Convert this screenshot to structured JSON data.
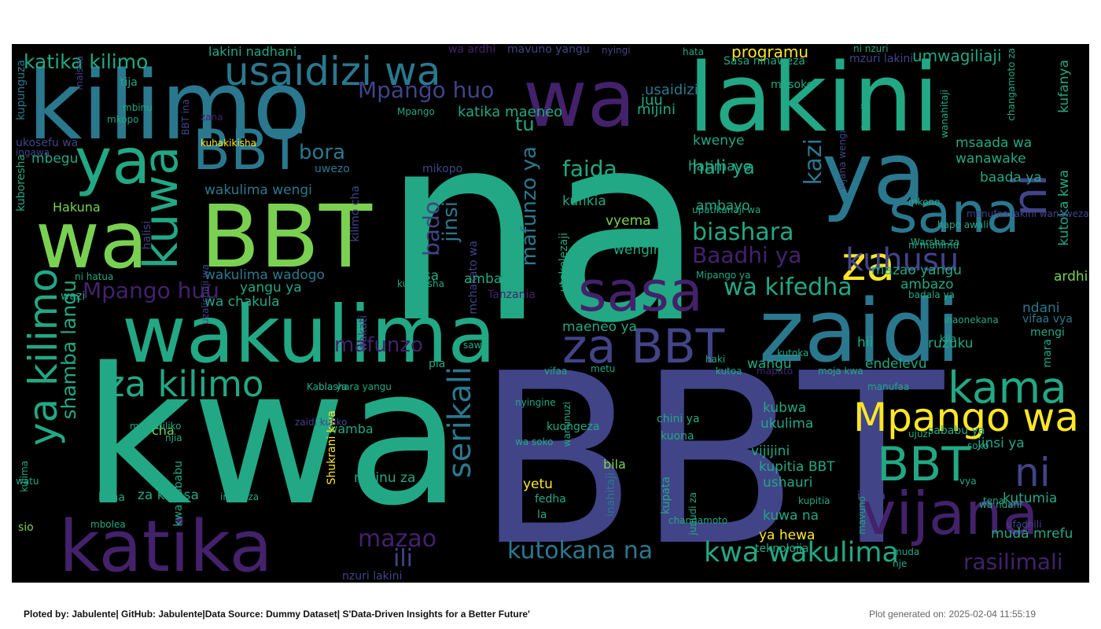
{
  "footer": {
    "credit": "Ploted by: Jabulente| GitHub: Jabulente|Data Source: Dummy Dataset| S'Data-Driven Insights for a Better Future'",
    "generated": "Plot generated on: 2025-02-04 11:55:19"
  },
  "palette": {
    "purple": "#44216b",
    "indigo": "#414487",
    "blue": "#2a788e",
    "teal": "#22a884",
    "green": "#7ad151",
    "yellow": "#fde725",
    "background": "#000000"
  },
  "words": [
    {
      "t": "na",
      "c": "teal"
    },
    {
      "t": "BBT",
      "c": "indigo"
    },
    {
      "t": "kwa",
      "c": "teal"
    },
    {
      "t": "lakini",
      "c": "teal"
    },
    {
      "t": "wakulima",
      "c": "teal"
    },
    {
      "t": "zaidi",
      "c": "blue"
    },
    {
      "t": "kilimo",
      "c": "blue"
    },
    {
      "t": "BBT",
      "c": "green"
    },
    {
      "t": "katika",
      "c": "purple"
    },
    {
      "t": "wa",
      "c": "green"
    },
    {
      "t": "ya",
      "c": "teal"
    },
    {
      "t": "wa",
      "c": "purple"
    },
    {
      "t": "ya",
      "c": "blue"
    },
    {
      "t": "BBT",
      "c": "blue"
    },
    {
      "t": "kuwa",
      "c": "teal"
    },
    {
      "t": "sasa",
      "c": "purple"
    },
    {
      "t": "vijana",
      "c": "purple"
    },
    {
      "t": "sana",
      "c": "blue"
    },
    {
      "t": "ni",
      "c": "indigo"
    },
    {
      "t": "ya kilimo",
      "c": "teal"
    },
    {
      "t": "za kilimo",
      "c": "teal"
    },
    {
      "t": "za",
      "c": "yellow"
    },
    {
      "t": "za BBT",
      "c": "indigo"
    },
    {
      "t": "kama",
      "c": "teal"
    },
    {
      "t": "Mpango wa",
      "c": "yellow"
    },
    {
      "t": "BBT",
      "c": "teal"
    },
    {
      "t": "ni",
      "c": "indigo"
    },
    {
      "t": "usaidizi wa",
      "c": "blue"
    },
    {
      "t": "serikali",
      "c": "blue"
    },
    {
      "t": "katika kilimo",
      "c": "teal"
    },
    {
      "t": "shamba langu",
      "c": "teal"
    },
    {
      "t": "Mpango huu",
      "c": "purple"
    },
    {
      "t": "kwa wakulima",
      "c": "teal"
    },
    {
      "t": "kutokana na",
      "c": "blue"
    },
    {
      "t": "mazao",
      "c": "purple"
    },
    {
      "t": "ili",
      "c": "indigo"
    },
    {
      "t": "biashara",
      "c": "teal"
    },
    {
      "t": "wa kifedha",
      "c": "teal"
    },
    {
      "t": "Mpango huo",
      "c": "indigo"
    },
    {
      "t": "mafunzo",
      "c": "purple"
    },
    {
      "t": "faida",
      "c": "teal"
    },
    {
      "t": "kuhusu",
      "c": "indigo"
    },
    {
      "t": "Baadhi ya",
      "c": "purple"
    },
    {
      "t": "rasilimali",
      "c": "purple"
    },
    {
      "t": "mafunzo ya",
      "c": "blue"
    },
    {
      "t": "jinsi",
      "c": "blue"
    },
    {
      "t": "bado",
      "c": "indigo"
    },
    {
      "t": "bora",
      "c": "blue"
    },
    {
      "t": "tu",
      "c": "teal"
    },
    {
      "t": "hali ya",
      "c": "teal"
    },
    {
      "t": "kazi",
      "c": "blue"
    },
    {
      "t": "programu",
      "c": "yellow"
    },
    {
      "t": "umwagiliaji",
      "c": "teal"
    },
    {
      "t": "juu",
      "c": "teal"
    },
    {
      "t": "usaidizi",
      "c": "blue"
    },
    {
      "t": "mijini",
      "c": "teal"
    },
    {
      "t": "katika maeneo",
      "c": "teal"
    },
    {
      "t": "kwenye",
      "c": "teal"
    },
    {
      "t": "msaada wa",
      "c": "teal"
    },
    {
      "t": "wanawake",
      "c": "teal"
    },
    {
      "t": "baada ya",
      "c": "teal"
    },
    {
      "t": "kutoka kwa",
      "c": "teal"
    },
    {
      "t": "kufanya",
      "c": "teal"
    },
    {
      "t": "wakulima wengi",
      "c": "blue"
    },
    {
      "t": "wakulima wadogo",
      "c": "blue"
    },
    {
      "t": "Hakuna",
      "c": "green"
    },
    {
      "t": "kupunguza",
      "c": "blue"
    },
    {
      "t": "kuboresha",
      "c": "teal"
    },
    {
      "t": "mbegu",
      "c": "teal"
    },
    {
      "t": "halisi",
      "c": "indigo"
    },
    {
      "t": "kilimo cha",
      "c": "indigo"
    },
    {
      "t": "uwezo",
      "c": "blue"
    },
    {
      "t": "hatimaye",
      "c": "teal"
    },
    {
      "t": "ambayo",
      "c": "teal"
    },
    {
      "t": "vyema",
      "c": "green"
    },
    {
      "t": "wengine",
      "c": "teal"
    },
    {
      "t": "kufikia",
      "c": "teal"
    },
    {
      "t": "mazao yangu",
      "c": "teal"
    },
    {
      "t": "ambazo",
      "c": "teal"
    },
    {
      "t": "ardhi",
      "c": "green"
    },
    {
      "t": "yangu ya",
      "c": "teal"
    },
    {
      "t": "wa chakula",
      "c": "teal"
    },
    {
      "t": "fursa",
      "c": "teal"
    },
    {
      "t": "mchakato wa",
      "c": "indigo"
    },
    {
      "t": "utekelezaji",
      "c": "teal"
    },
    {
      "t": "ambao",
      "c": "teal"
    },
    {
      "t": "Tanzania",
      "c": "purple"
    },
    {
      "t": "wazi",
      "c": "teal"
    },
    {
      "t": "wakati",
      "c": "indigo"
    },
    {
      "t": "maeneo ya",
      "c": "teal"
    },
    {
      "t": "hii",
      "c": "teal"
    },
    {
      "t": "wangu",
      "c": "teal"
    },
    {
      "t": "endelevu",
      "c": "teal"
    },
    {
      "t": "ruzuku",
      "c": "teal"
    },
    {
      "t": "mengi",
      "c": "teal"
    },
    {
      "t": "mara",
      "c": "teal"
    },
    {
      "t": "ndani",
      "c": "blue"
    },
    {
      "t": "vifaa vya",
      "c": "blue"
    },
    {
      "t": "kubwa",
      "c": "teal"
    },
    {
      "t": "ukulima",
      "c": "teal"
    },
    {
      "t": "sababu ya",
      "c": "teal"
    },
    {
      "t": "jinsi ya",
      "c": "teal"
    },
    {
      "t": "vijijini",
      "c": "teal"
    },
    {
      "t": "kupitia BBT",
      "c": "teal"
    },
    {
      "t": "ushauri",
      "c": "teal"
    },
    {
      "t": "kuwa na",
      "c": "teal"
    },
    {
      "t": "ikiwa",
      "c": "indigo"
    },
    {
      "t": "kutumia",
      "c": "teal"
    },
    {
      "t": "ya hewa",
      "c": "yellow"
    },
    {
      "t": "muda mrefu",
      "c": "teal"
    },
    {
      "t": "teknolojia",
      "c": "teal"
    },
    {
      "t": "chini ya",
      "c": "teal"
    },
    {
      "t": "kuona",
      "c": "teal"
    },
    {
      "t": "kuongeza",
      "c": "teal"
    },
    {
      "t": "kwamba",
      "c": "teal"
    },
    {
      "t": "Shukrani kwa",
      "c": "yellow"
    },
    {
      "t": "cha",
      "c": "green"
    },
    {
      "t": "bila",
      "c": "green"
    },
    {
      "t": "kupata",
      "c": "teal"
    },
    {
      "t": "yetu",
      "c": "yellow"
    },
    {
      "t": "fedha",
      "c": "teal"
    },
    {
      "t": "la",
      "c": "teal"
    },
    {
      "t": "mbinu za",
      "c": "teal"
    },
    {
      "t": "inahitaji",
      "c": "blue"
    },
    {
      "t": "kwa sababu",
      "c": "teal"
    },
    {
      "t": "za kisasa",
      "c": "teal"
    },
    {
      "t": "kuna",
      "c": "teal"
    },
    {
      "t": "sio",
      "c": "green"
    },
    {
      "t": "nzuri lakini",
      "c": "indigo"
    },
    {
      "t": "pia",
      "c": "teal"
    },
    {
      "t": "lakini nadhani",
      "c": "teal"
    },
    {
      "t": "wa ardhi",
      "c": "purple"
    },
    {
      "t": "mavuno yangu",
      "c": "indigo"
    },
    {
      "t": "nyingi",
      "c": "indigo"
    },
    {
      "t": "hata",
      "c": "teal"
    },
    {
      "t": "Sasa ninaweza",
      "c": "teal"
    },
    {
      "t": "masoko",
      "c": "teal"
    },
    {
      "t": "ni nzuri",
      "c": "teal"
    },
    {
      "t": "mzuri lakini",
      "c": "indigo"
    },
    {
      "t": "tija",
      "c": "teal"
    },
    {
      "t": "maisha",
      "c": "indigo"
    },
    {
      "t": "mbinu",
      "c": "teal"
    },
    {
      "t": "mkopo",
      "c": "teal"
    },
    {
      "t": "BBT ina",
      "c": "indigo"
    },
    {
      "t": "zana",
      "c": "purple"
    },
    {
      "t": "ukosefu wa",
      "c": "indigo"
    },
    {
      "t": "ingawa",
      "c": "indigo"
    },
    {
      "t": "kuhakikisha",
      "c": "yellow"
    },
    {
      "t": "Mpango",
      "c": "teal"
    },
    {
      "t": "upatikanaji wa",
      "c": "teal"
    },
    {
      "t": "mikopo",
      "c": "indigo"
    },
    {
      "t": "si",
      "c": "teal"
    },
    {
      "t": "kweli",
      "c": "teal"
    },
    {
      "t": "wanahitaji",
      "c": "teal"
    },
    {
      "t": "changamoto za",
      "c": "teal"
    },
    {
      "t": "mkono",
      "c": "teal"
    },
    {
      "t": "manufaa lakini wanaweza",
      "c": "indigo"
    },
    {
      "t": "Warsha za",
      "c": "teal"
    },
    {
      "t": "hapo awali",
      "c": "teal"
    },
    {
      "t": "ni muhimu",
      "c": "teal"
    },
    {
      "t": "vijana wengi",
      "c": "indigo"
    },
    {
      "t": "ni hatua",
      "c": "teal"
    },
    {
      "t": "uzalishaji wa",
      "c": "indigo"
    },
    {
      "t": "kuanzisha",
      "c": "teal"
    },
    {
      "t": "Mipango ya",
      "c": "teal"
    },
    {
      "t": "badala ya",
      "c": "teal"
    },
    {
      "t": "inaonekana",
      "c": "teal"
    },
    {
      "t": "kila",
      "c": "teal"
    },
    {
      "t": "manufaa",
      "c": "teal"
    },
    {
      "t": "kutoa",
      "c": "teal"
    },
    {
      "t": "biashara yangu",
      "c": "teal"
    },
    {
      "t": "sawa",
      "c": "teal"
    },
    {
      "t": "vifaa",
      "c": "teal"
    },
    {
      "t": "metu",
      "c": "teal"
    },
    {
      "t": "haki",
      "c": "teal"
    },
    {
      "t": "mapato",
      "c": "purple"
    },
    {
      "t": "kutoka",
      "c": "teal"
    },
    {
      "t": "moja kwa",
      "c": "teal"
    },
    {
      "t": "Kabla ya",
      "c": "teal"
    },
    {
      "t": "zaidi kuliko",
      "c": "indigo"
    },
    {
      "t": "nyingine",
      "c": "teal"
    },
    {
      "t": "wanunuzi",
      "c": "teal"
    },
    {
      "t": "wa soko",
      "c": "teal"
    },
    {
      "t": "mabadiliko",
      "c": "teal"
    },
    {
      "t": "njia",
      "c": "teal"
    },
    {
      "t": "kulima",
      "c": "teal"
    },
    {
      "t": "watu",
      "c": "teal"
    },
    {
      "t": "mbolea",
      "c": "teal"
    },
    {
      "t": "inaweza",
      "c": "teal"
    },
    {
      "t": "changamoto",
      "c": "teal"
    },
    {
      "t": "junudi za",
      "c": "teal"
    },
    {
      "t": "kupitia",
      "c": "teal"
    },
    {
      "t": "ujuzi",
      "c": "teal"
    },
    {
      "t": "soko",
      "c": "teal"
    },
    {
      "t": "vya",
      "c": "teal"
    },
    {
      "t": "tena",
      "c": "teal"
    },
    {
      "t": "wa ndani",
      "c": "teal"
    },
    {
      "t": "ufadhili",
      "c": "indigo"
    },
    {
      "t": "mavuno",
      "c": "teal"
    },
    {
      "t": "muda",
      "c": "teal"
    },
    {
      "t": "nje",
      "c": "teal"
    }
  ]
}
